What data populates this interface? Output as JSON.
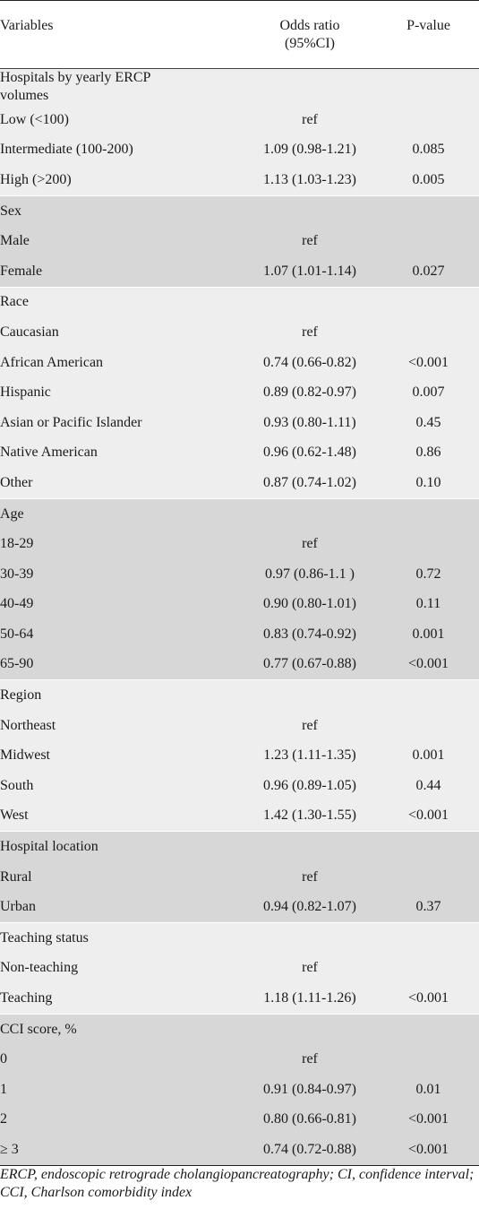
{
  "header": {
    "variables": "Variables",
    "odds_ratio_line1": "Odds ratio",
    "odds_ratio_line2": "(95%CI)",
    "p_value": "P-value"
  },
  "groups": [
    {
      "title": "Hospitals by yearly ERCP volumes",
      "rows": [
        {
          "label": "Low (<100)",
          "or": "ref",
          "p": ""
        },
        {
          "label": "Intermediate (100-200)",
          "or": "1.09 (0.98-1.21)",
          "p": "0.085"
        },
        {
          "label": "High (>200)",
          "or": "1.13 (1.03-1.23)",
          "p": "0.005"
        }
      ]
    },
    {
      "title": "Sex",
      "rows": [
        {
          "label": "Male",
          "or": "ref",
          "p": ""
        },
        {
          "label": "Female",
          "or": "1.07 (1.01-1.14)",
          "p": "0.027"
        }
      ]
    },
    {
      "title": "Race",
      "rows": [
        {
          "label": "Caucasian",
          "or": "ref",
          "p": ""
        },
        {
          "label": "African American",
          "or": "0.74 (0.66-0.82)",
          "p": "<0.001"
        },
        {
          "label": "Hispanic",
          "or": "0.89 (0.82-0.97)",
          "p": "0.007"
        },
        {
          "label": "Asian or Pacific Islander",
          "or": "0.93 (0.80-1.11)",
          "p": "0.45"
        },
        {
          "label": "Native American",
          "or": "0.96 (0.62-1.48)",
          "p": "0.86"
        },
        {
          "label": "Other",
          "or": "0.87 (0.74-1.02)",
          "p": "0.10"
        }
      ]
    },
    {
      "title": "Age",
      "rows": [
        {
          "label": "18-29",
          "or": "ref",
          "p": ""
        },
        {
          "label": "30-39",
          "or": "0.97 (0.86-1.1 )",
          "p": "0.72"
        },
        {
          "label": "40-49",
          "or": "0.90 (0.80-1.01)",
          "p": "0.11"
        },
        {
          "label": "50-64",
          "or": "0.83 (0.74-0.92)",
          "p": "0.001"
        },
        {
          "label": "65-90",
          "or": "0.77 (0.67-0.88)",
          "p": "<0.001"
        }
      ]
    },
    {
      "title": "Region",
      "rows": [
        {
          "label": "Northeast",
          "or": "ref",
          "p": ""
        },
        {
          "label": "Midwest",
          "or": "1.23 (1.11-1.35)",
          "p": "0.001"
        },
        {
          "label": "South",
          "or": "0.96 (0.89-1.05)",
          "p": "0.44"
        },
        {
          "label": "West",
          "or": "1.42 (1.30-1.55)",
          "p": "<0.001"
        }
      ]
    },
    {
      "title": "Hospital location",
      "rows": [
        {
          "label": "Rural",
          "or": "ref",
          "p": ""
        },
        {
          "label": "Urban",
          "or": "0.94 (0.82-1.07)",
          "p": "0.37"
        }
      ]
    },
    {
      "title": "Teaching status",
      "rows": [
        {
          "label": "Non-teaching",
          "or": "ref",
          "p": ""
        },
        {
          "label": "Teaching",
          "or": "1.18 (1.11-1.26)",
          "p": "<0.001"
        }
      ]
    },
    {
      "title": "CCI score, %",
      "rows": [
        {
          "label": "0",
          "or": "ref",
          "p": ""
        },
        {
          "label": "1",
          "or": "0.91 (0.84-0.97)",
          "p": "0.01"
        },
        {
          "label": "2",
          "or": "0.80 (0.66-0.81)",
          "p": "<0.001"
        },
        {
          "label": "≥ 3",
          "or": "0.74 (0.72-0.88)",
          "p": "<0.001"
        }
      ]
    }
  ],
  "footnote": "ERCP, endoscopic retrograde cholangiopancreatography; CI, confidence interval; CCI, Charlson comorbidity index",
  "colors": {
    "band_light": "#eeeeee",
    "band_dark": "#d7d7d7",
    "rule": "#222222"
  }
}
